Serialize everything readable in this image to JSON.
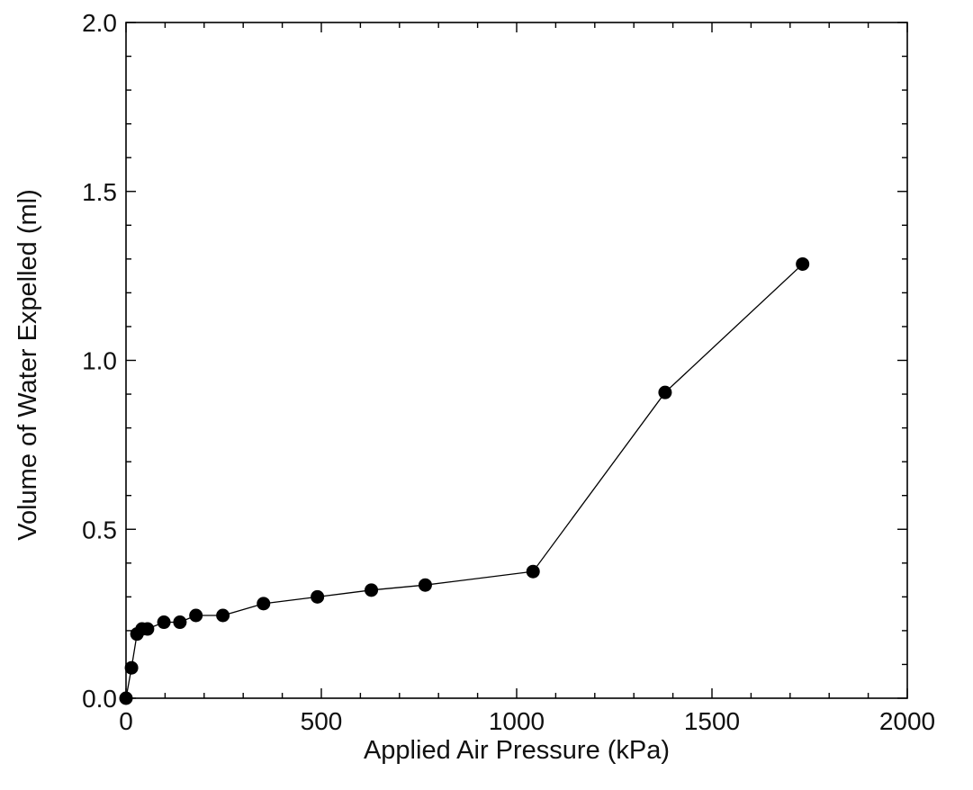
{
  "chart_data": {
    "type": "line",
    "title": "",
    "xlabel": "Applied Air Pressure (kPa)",
    "ylabel": "Volume of Water Expelled (ml)",
    "xlim": [
      0,
      2000
    ],
    "ylim": [
      0.0,
      2.0
    ],
    "x_ticks": [
      0,
      500,
      1000,
      1500,
      2000
    ],
    "x_tick_labels": [
      "0",
      "500",
      "1000",
      "1500",
      "2000"
    ],
    "y_ticks": [
      0.0,
      0.5,
      1.0,
      1.5,
      2.0
    ],
    "y_tick_labels": [
      "0.0",
      "0.5",
      "1.0",
      "1.5",
      "2.0"
    ],
    "x_minor_step": 100,
    "y_minor_step": 0.1,
    "grid": false,
    "legend": "none",
    "marker_color": "#000000",
    "line_color": "#000000",
    "series": [
      {
        "x": [
          0,
          14,
          28,
          41,
          55,
          97,
          138,
          179,
          248,
          352,
          490,
          628,
          766,
          1042,
          1380,
          1732
        ],
        "y": [
          0.0,
          0.09,
          0.19,
          0.205,
          0.205,
          0.225,
          0.225,
          0.245,
          0.245,
          0.28,
          0.3,
          0.32,
          0.335,
          0.375,
          0.905,
          1.285
        ]
      }
    ]
  }
}
